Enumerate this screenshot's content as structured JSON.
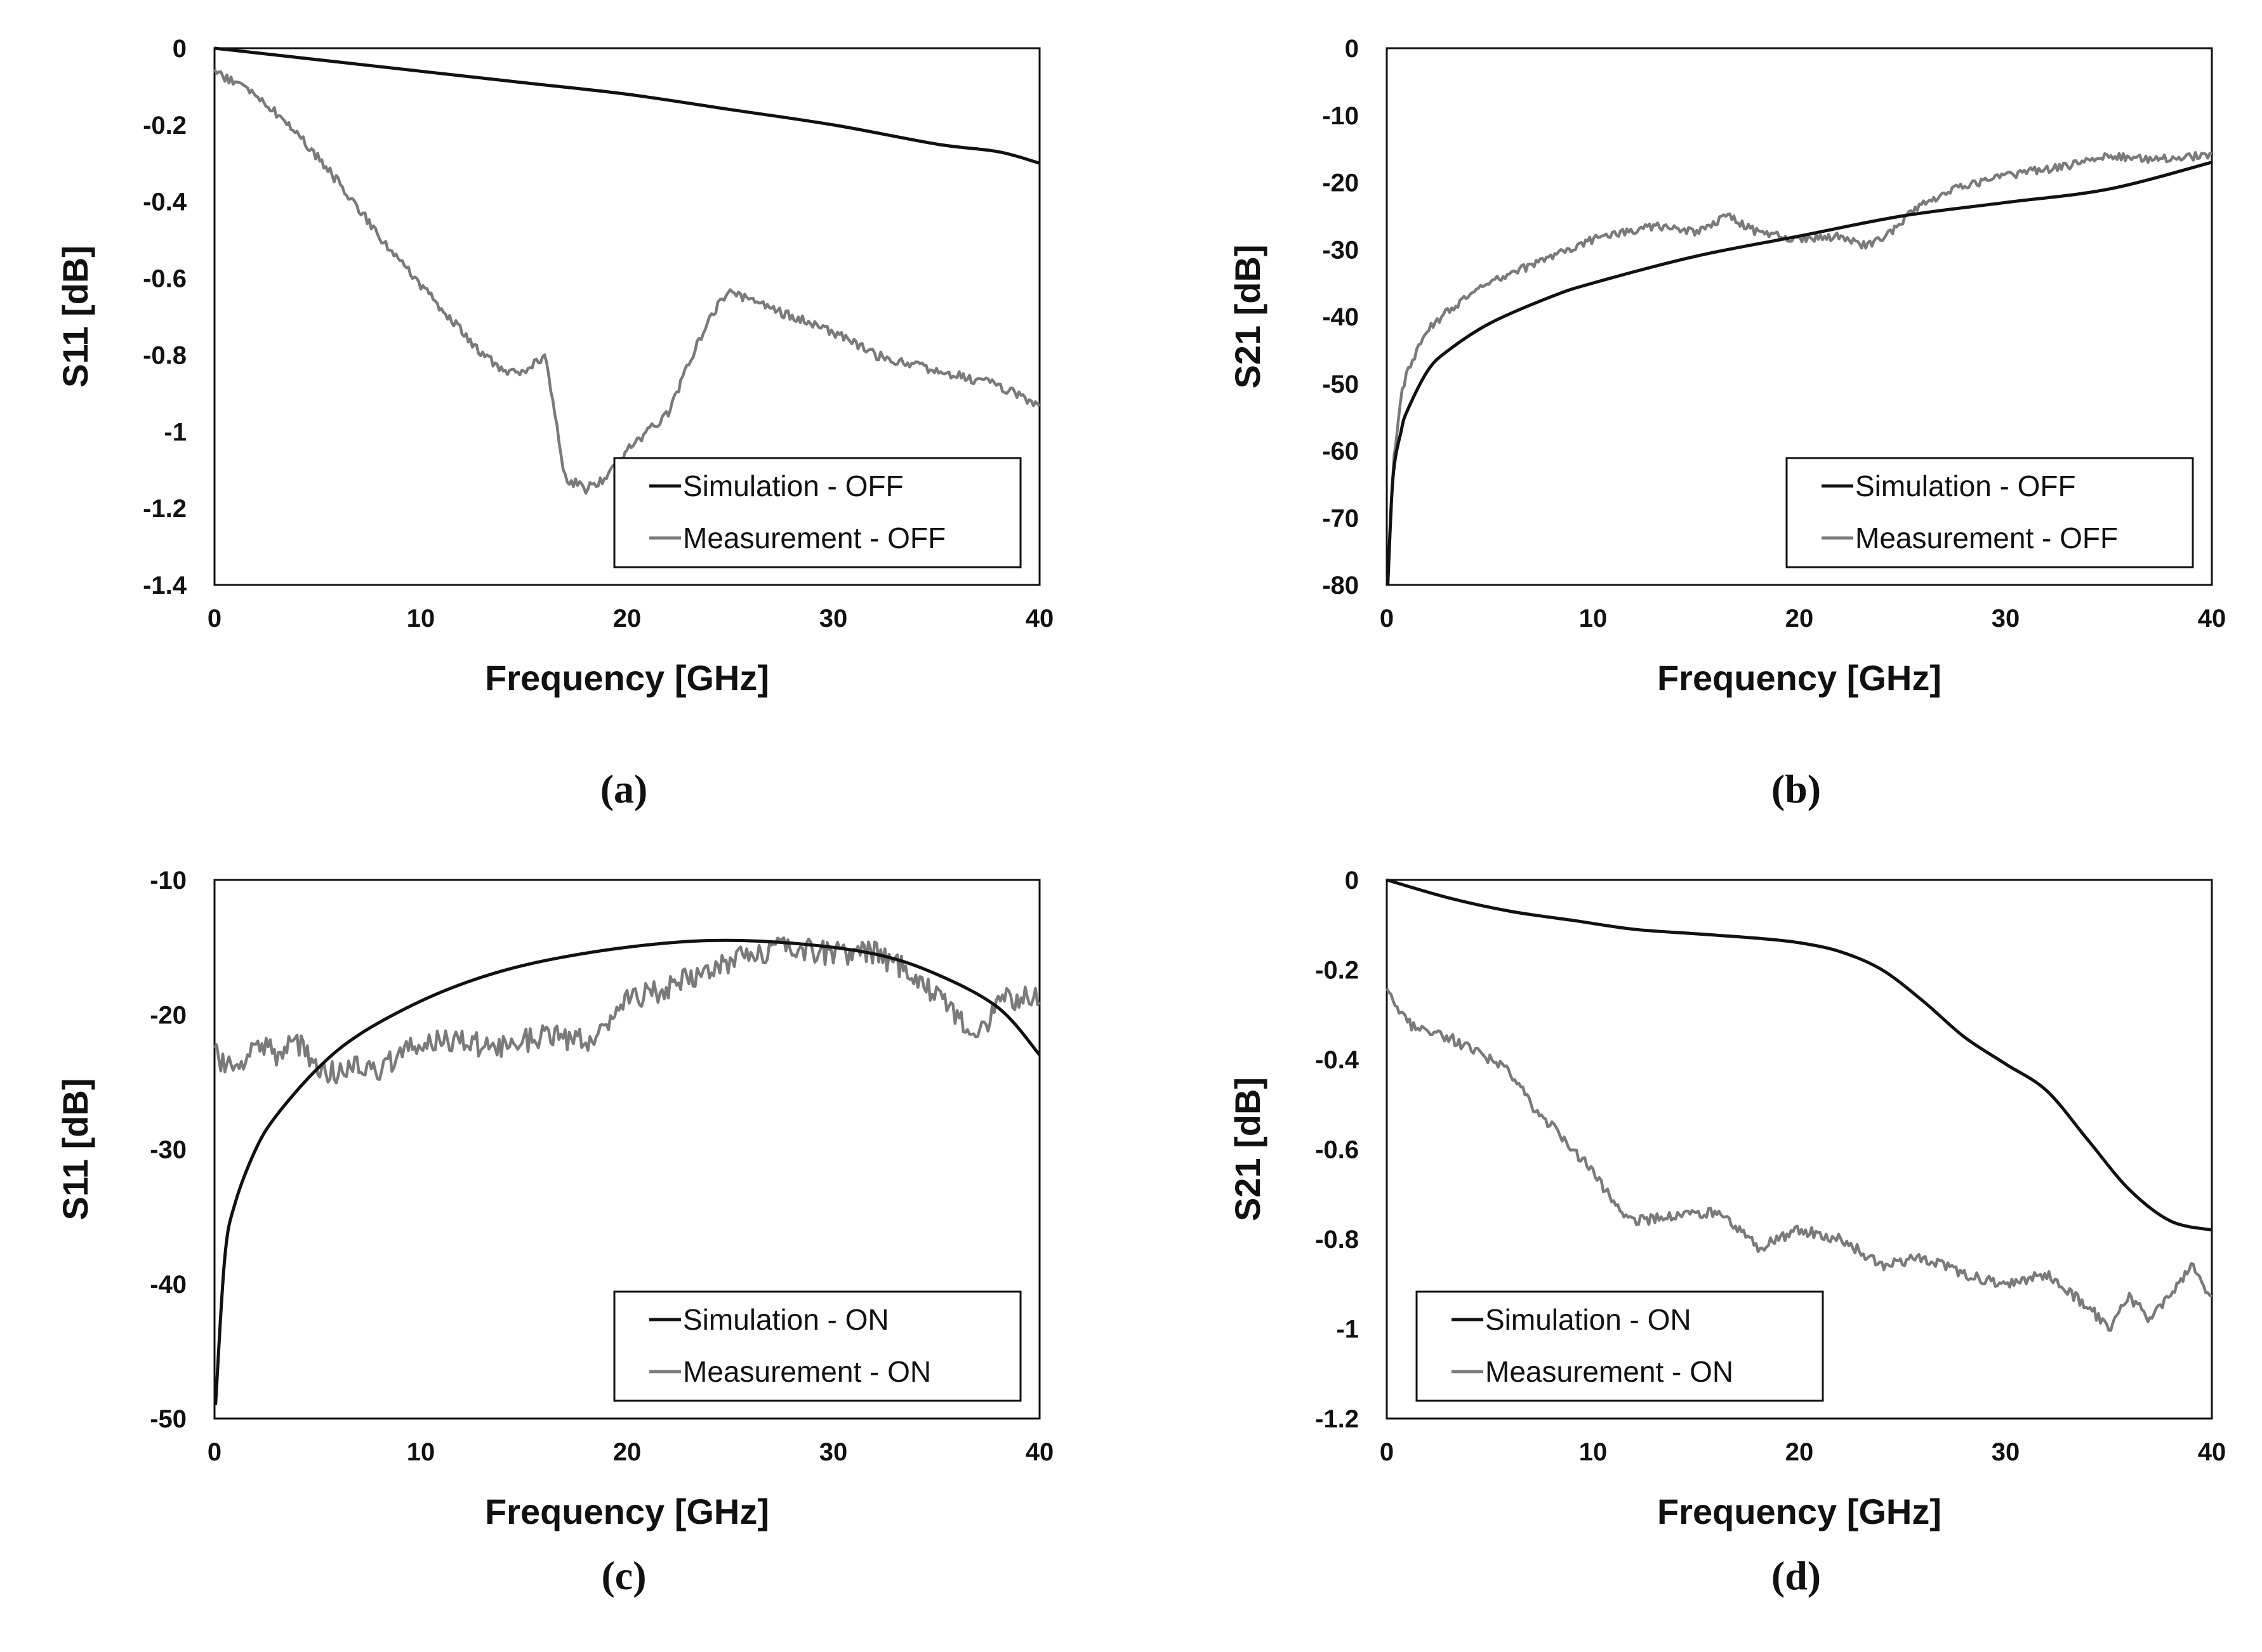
{
  "figure": {
    "panels": [
      "(a)",
      "(b)",
      "(c)",
      "(d)"
    ]
  },
  "colors": {
    "simulation": "#111111",
    "measurement": "#7a7a7a"
  },
  "chart_data": [
    {
      "type": "line",
      "caption": "(a)",
      "xlabel": "Frequency [GHz]",
      "ylabel": "S11 [dB]",
      "xlim": [
        0,
        40
      ],
      "ylim": [
        -1.4,
        0
      ],
      "xticks": [
        0,
        10,
        20,
        30,
        40
      ],
      "xtick_labels": [
        "0",
        "10",
        "20",
        "30",
        "40"
      ],
      "yticks": [
        0,
        -0.2,
        -0.4,
        -0.6,
        -0.8,
        -1,
        -1.2,
        -1.4
      ],
      "ytick_labels": [
        "0",
        "-0.2",
        "-0.4",
        "-0.6",
        "-0.8",
        "-1",
        "-1.2",
        "-1.4"
      ],
      "legend_position": "bottom-right",
      "series": [
        {
          "name": "Simulation - OFF",
          "x": [
            0,
            5,
            10,
            15,
            20,
            25,
            30,
            35,
            38,
            40
          ],
          "y": [
            0,
            -0.03,
            -0.06,
            -0.09,
            -0.12,
            -0.16,
            -0.2,
            -0.25,
            -0.27,
            -0.3
          ]
        },
        {
          "name": "Measurement - OFF",
          "noise": 0.012,
          "x": [
            0,
            2,
            4,
            6,
            8,
            10,
            12,
            13,
            14,
            15,
            16,
            17,
            18,
            19,
            20,
            21,
            22,
            23,
            24,
            25,
            26,
            28,
            30,
            32,
            35,
            38,
            40
          ],
          "y": [
            -0.06,
            -0.12,
            -0.22,
            -0.35,
            -0.49,
            -0.62,
            -0.74,
            -0.8,
            -0.84,
            -0.85,
            -0.8,
            -1.12,
            -1.15,
            -1.12,
            -1.05,
            -1.0,
            -0.95,
            -0.82,
            -0.7,
            -0.63,
            -0.66,
            -0.7,
            -0.74,
            -0.8,
            -0.84,
            -0.88,
            -0.93
          ]
        }
      ]
    },
    {
      "type": "line",
      "caption": "(b)",
      "xlabel": "Frequency [GHz]",
      "ylabel": "S21 [dB]",
      "xlim": [
        0,
        40
      ],
      "ylim": [
        -80,
        0
      ],
      "xticks": [
        0,
        10,
        20,
        30,
        40
      ],
      "xtick_labels": [
        "0",
        "10",
        "20",
        "30",
        "40"
      ],
      "yticks": [
        0,
        -10,
        -20,
        -30,
        -40,
        -50,
        -60,
        -70,
        -80
      ],
      "ytick_labels": [
        "0",
        "-10",
        "-20",
        "-30",
        "-40",
        "-50",
        "-60",
        "-70",
        "-80"
      ],
      "legend_position": "bottom-right",
      "series": [
        {
          "name": "Simulation - OFF",
          "x": [
            0.05,
            0.3,
            0.7,
            1,
            2,
            3,
            5,
            8,
            10,
            15,
            20,
            25,
            30,
            35,
            40
          ],
          "y": [
            -80,
            -64,
            -57,
            -54,
            -48,
            -45,
            -41,
            -37,
            -35,
            -31,
            -28,
            -25,
            -23,
            -21,
            -17
          ]
        },
        {
          "name": "Measurement - OFF",
          "noise": 0.6,
          "x": [
            0.05,
            0.3,
            0.7,
            1,
            2,
            3,
            5,
            8,
            10,
            13,
            15,
            16.5,
            18,
            20,
            22,
            23,
            24,
            26,
            28,
            30,
            33,
            35,
            37,
            40
          ],
          "y": [
            -80,
            -62,
            -52,
            -48,
            -42,
            -39,
            -35,
            -31,
            -28.5,
            -26.5,
            -27.5,
            -25,
            -27.5,
            -28.5,
            -28,
            -29.5,
            -28.5,
            -23,
            -20.5,
            -19,
            -17.5,
            -16,
            -16.5,
            -16
          ]
        }
      ]
    },
    {
      "type": "line",
      "caption": "(c)",
      "xlabel": "Frequency [GHz]",
      "ylabel": "S11 [dB]",
      "xlim": [
        0,
        40
      ],
      "ylim": [
        -50,
        -10
      ],
      "xticks": [
        0,
        10,
        20,
        30,
        40
      ],
      "xtick_labels": [
        "0",
        "10",
        "20",
        "30",
        "40"
      ],
      "yticks": [
        -10,
        -20,
        -30,
        -40,
        -50
      ],
      "ytick_labels": [
        "-10",
        "-20",
        "-30",
        "-40",
        "-50"
      ],
      "legend_position": "bottom-right",
      "series": [
        {
          "name": "Simulation - ON",
          "x": [
            0.05,
            0.5,
            1,
            2,
            3,
            5,
            7,
            10,
            13,
            16,
            20,
            24,
            28,
            32,
            35,
            38,
            40
          ],
          "y": [
            -49,
            -38,
            -34,
            -30,
            -27.5,
            -24,
            -21.5,
            -19,
            -17.2,
            -16,
            -15,
            -14.5,
            -14.7,
            -15.5,
            -17,
            -19.5,
            -23
          ]
        },
        {
          "name": "Measurement - ON",
          "noise": 0.9,
          "x": [
            0,
            1,
            2,
            3,
            4,
            5,
            6,
            7,
            8,
            10,
            12,
            14,
            16,
            18,
            20,
            22,
            24,
            26,
            28,
            30,
            32,
            34,
            36,
            37,
            38,
            40
          ],
          "y": [
            -23,
            -24,
            -22,
            -23,
            -22,
            -24,
            -24.5,
            -23.5,
            -24,
            -22,
            -22,
            -22.5,
            -21.5,
            -22,
            -19,
            -18,
            -16.5,
            -15.5,
            -15,
            -15.5,
            -15.5,
            -17,
            -20,
            -22,
            -19,
            -18.5
          ]
        }
      ]
    },
    {
      "type": "line",
      "caption": "(d)",
      "xlabel": "Frequency [GHz]",
      "ylabel": "S21 [dB]",
      "xlim": [
        0,
        40
      ],
      "ylim": [
        -1.2,
        0
      ],
      "xticks": [
        0,
        10,
        20,
        30,
        40
      ],
      "xtick_labels": [
        "0",
        "10",
        "20",
        "30",
        "40"
      ],
      "yticks": [
        0,
        -0.2,
        -0.4,
        -0.6,
        -0.8,
        -1,
        -1.2
      ],
      "ytick_labels": [
        "0",
        "-0.2",
        "-0.4",
        "-0.6",
        "-0.8",
        "-1",
        "-1.2"
      ],
      "legend_position": "bottom-left",
      "series": [
        {
          "name": "Simulation - ON",
          "x": [
            0,
            3,
            6,
            9,
            12,
            15,
            18,
            20,
            22,
            24,
            26,
            28,
            30,
            32,
            34,
            36,
            38,
            40
          ],
          "y": [
            0,
            -0.04,
            -0.07,
            -0.09,
            -0.11,
            -0.12,
            -0.13,
            -0.14,
            -0.16,
            -0.2,
            -0.27,
            -0.35,
            -0.41,
            -0.47,
            -0.58,
            -0.69,
            -0.76,
            -0.78
          ]
        },
        {
          "name": "Measurement - ON",
          "noise": 0.012,
          "x": [
            0,
            1,
            3,
            5,
            6,
            7,
            8,
            9,
            10,
            11,
            12,
            14,
            16,
            18,
            20,
            22,
            24,
            26,
            28,
            30,
            32,
            34,
            35,
            36,
            37,
            38,
            39,
            40
          ],
          "y": [
            -0.25,
            -0.32,
            -0.35,
            -0.4,
            -0.43,
            -0.5,
            -0.55,
            -0.6,
            -0.65,
            -0.72,
            -0.76,
            -0.75,
            -0.74,
            -0.82,
            -0.78,
            -0.8,
            -0.86,
            -0.84,
            -0.88,
            -0.9,
            -0.88,
            -0.95,
            -1.0,
            -0.93,
            -0.98,
            -0.92,
            -0.86,
            -0.93
          ]
        }
      ]
    }
  ]
}
